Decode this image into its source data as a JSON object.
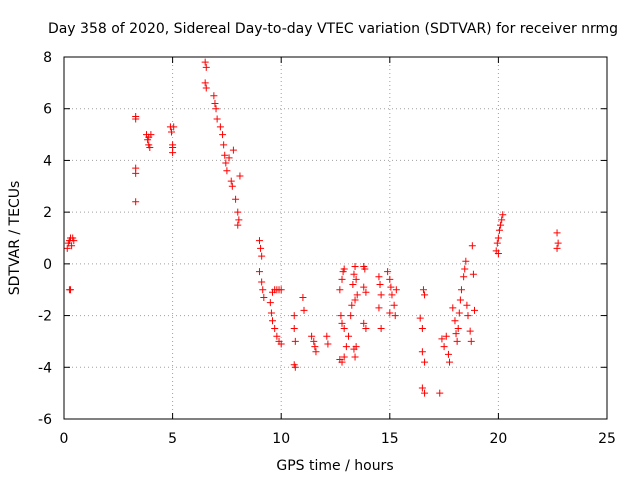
{
  "chart_data": {
    "type": "scatter",
    "title": "Day 358 of 2020, Sidereal Day-to-day VTEC variation (SDTVAR) for receiver nrmg",
    "xlabel": "GPS time / hours",
    "ylabel": "SDTVAR / TECUs",
    "xlim": [
      0,
      25
    ],
    "ylim": [
      -6,
      8
    ],
    "xticks": [
      0,
      5,
      10,
      15,
      20,
      25
    ],
    "yticks": [
      -6,
      -4,
      -2,
      0,
      2,
      4,
      6,
      8
    ],
    "x_tick_labels": [
      "0",
      "5",
      "10",
      "15",
      "20",
      "25"
    ],
    "y_tick_labels": [
      "-6",
      "-4",
      "-2",
      "0",
      "2",
      "4",
      "6",
      "8"
    ],
    "grid": true,
    "marker": "+",
    "color": "#ff0000",
    "series": [
      {
        "name": "SDTVAR",
        "points": [
          [
            0.15,
            0.6
          ],
          [
            0.2,
            0.8
          ],
          [
            0.25,
            0.9
          ],
          [
            0.3,
            1.0
          ],
          [
            0.35,
            0.7
          ],
          [
            0.4,
            1.0
          ],
          [
            0.45,
            0.9
          ],
          [
            0.25,
            -1.0
          ],
          [
            0.3,
            -1.0
          ],
          [
            3.3,
            5.7
          ],
          [
            3.3,
            5.6
          ],
          [
            3.3,
            3.7
          ],
          [
            3.3,
            3.5
          ],
          [
            3.3,
            2.4
          ],
          [
            3.8,
            5.0
          ],
          [
            3.85,
            4.8
          ],
          [
            3.9,
            4.6
          ],
          [
            3.95,
            4.5
          ],
          [
            4.0,
            5.0
          ],
          [
            3.9,
            4.9
          ],
          [
            4.9,
            5.3
          ],
          [
            4.95,
            5.1
          ],
          [
            5.0,
            4.6
          ],
          [
            5.0,
            4.3
          ],
          [
            5.05,
            5.3
          ],
          [
            5.0,
            4.5
          ],
          [
            6.5,
            7.8
          ],
          [
            6.55,
            7.6
          ],
          [
            6.5,
            7.0
          ],
          [
            6.55,
            6.8
          ],
          [
            6.9,
            6.5
          ],
          [
            6.95,
            6.2
          ],
          [
            7.0,
            6.0
          ],
          [
            7.05,
            5.6
          ],
          [
            7.2,
            5.3
          ],
          [
            7.3,
            5.0
          ],
          [
            7.35,
            4.6
          ],
          [
            7.4,
            4.2
          ],
          [
            7.45,
            3.9
          ],
          [
            7.5,
            3.6
          ],
          [
            7.6,
            4.1
          ],
          [
            7.7,
            3.2
          ],
          [
            7.75,
            3.0
          ],
          [
            7.8,
            4.4
          ],
          [
            7.9,
            2.5
          ],
          [
            8.0,
            2.0
          ],
          [
            8.05,
            1.7
          ],
          [
            8.1,
            3.4
          ],
          [
            8.0,
            1.5
          ],
          [
            9.0,
            0.9
          ],
          [
            9.05,
            0.6
          ],
          [
            9.1,
            0.3
          ],
          [
            9.0,
            -0.3
          ],
          [
            9.1,
            -0.7
          ],
          [
            9.15,
            -1.0
          ],
          [
            9.2,
            -1.3
          ],
          [
            9.5,
            -1.5
          ],
          [
            9.55,
            -1.9
          ],
          [
            9.6,
            -2.2
          ],
          [
            9.7,
            -2.5
          ],
          [
            9.8,
            -2.8
          ],
          [
            9.9,
            -3.0
          ],
          [
            10.0,
            -3.1
          ],
          [
            9.7,
            -1.0
          ],
          [
            9.8,
            -1.0
          ],
          [
            9.9,
            -1.0
          ],
          [
            10.0,
            -1.0
          ],
          [
            9.6,
            -1.1
          ],
          [
            10.6,
            -2.0
          ],
          [
            10.6,
            -2.5
          ],
          [
            10.65,
            -3.0
          ],
          [
            10.6,
            -3.9
          ],
          [
            10.65,
            -4.0
          ],
          [
            11.0,
            -1.3
          ],
          [
            11.05,
            -1.8
          ],
          [
            11.4,
            -2.8
          ],
          [
            11.5,
            -3.0
          ],
          [
            11.55,
            -3.2
          ],
          [
            11.6,
            -3.4
          ],
          [
            12.1,
            -2.8
          ],
          [
            12.15,
            -3.1
          ],
          [
            12.7,
            -1.0
          ],
          [
            12.8,
            -0.6
          ],
          [
            12.85,
            -0.3
          ],
          [
            12.9,
            -0.2
          ],
          [
            12.75,
            -2.0
          ],
          [
            12.8,
            -2.3
          ],
          [
            12.9,
            -2.5
          ],
          [
            12.7,
            -3.7
          ],
          [
            12.8,
            -3.8
          ],
          [
            12.9,
            -3.6
          ],
          [
            13.0,
            -3.2
          ],
          [
            13.1,
            -2.8
          ],
          [
            13.2,
            -2.0
          ],
          [
            13.25,
            -1.6
          ],
          [
            13.3,
            -0.8
          ],
          [
            13.35,
            -0.4
          ],
          [
            13.4,
            -0.1
          ],
          [
            13.45,
            -0.6
          ],
          [
            13.4,
            -1.4
          ],
          [
            13.5,
            -1.2
          ],
          [
            13.35,
            -3.3
          ],
          [
            13.4,
            -3.6
          ],
          [
            13.45,
            -3.2
          ],
          [
            13.8,
            -0.1
          ],
          [
            13.85,
            -0.2
          ],
          [
            13.8,
            -0.9
          ],
          [
            13.9,
            -1.1
          ],
          [
            13.8,
            -2.3
          ],
          [
            13.9,
            -2.5
          ],
          [
            14.5,
            -0.5
          ],
          [
            14.55,
            -0.8
          ],
          [
            14.6,
            -1.2
          ],
          [
            14.5,
            -1.7
          ],
          [
            14.6,
            -2.5
          ],
          [
            14.9,
            -0.3
          ],
          [
            15.0,
            -0.6
          ],
          [
            15.05,
            -0.9
          ],
          [
            15.1,
            -1.2
          ],
          [
            15.2,
            -1.6
          ],
          [
            15.25,
            -2.0
          ],
          [
            15.0,
            -1.9
          ],
          [
            15.3,
            -1.0
          ],
          [
            16.4,
            -2.1
          ],
          [
            16.5,
            -2.5
          ],
          [
            16.55,
            -1.0
          ],
          [
            16.6,
            -1.2
          ],
          [
            16.5,
            -3.4
          ],
          [
            16.6,
            -3.8
          ],
          [
            16.5,
            -4.8
          ],
          [
            16.6,
            -5.0
          ],
          [
            17.3,
            -5.0
          ],
          [
            17.4,
            -2.9
          ],
          [
            17.5,
            -3.2
          ],
          [
            17.6,
            -2.8
          ],
          [
            17.7,
            -3.5
          ],
          [
            17.75,
            -3.8
          ],
          [
            17.9,
            -1.7
          ],
          [
            18.0,
            -2.2
          ],
          [
            18.05,
            -2.7
          ],
          [
            18.1,
            -3.0
          ],
          [
            18.15,
            -2.5
          ],
          [
            18.2,
            -1.9
          ],
          [
            18.25,
            -1.4
          ],
          [
            18.3,
            -1.0
          ],
          [
            18.4,
            -0.5
          ],
          [
            18.45,
            -0.2
          ],
          [
            18.5,
            0.1
          ],
          [
            18.55,
            -1.6
          ],
          [
            18.6,
            -2.0
          ],
          [
            18.7,
            -2.6
          ],
          [
            18.75,
            -3.0
          ],
          [
            18.8,
            0.7
          ],
          [
            18.85,
            -0.4
          ],
          [
            18.9,
            -1.8
          ],
          [
            19.9,
            0.5
          ],
          [
            19.95,
            0.8
          ],
          [
            20.0,
            1.0
          ],
          [
            20.05,
            1.3
          ],
          [
            20.1,
            1.5
          ],
          [
            20.15,
            1.7
          ],
          [
            20.2,
            1.9
          ],
          [
            20.0,
            0.4
          ],
          [
            22.7,
            1.2
          ],
          [
            22.75,
            0.8
          ],
          [
            22.7,
            0.6
          ]
        ]
      }
    ]
  }
}
